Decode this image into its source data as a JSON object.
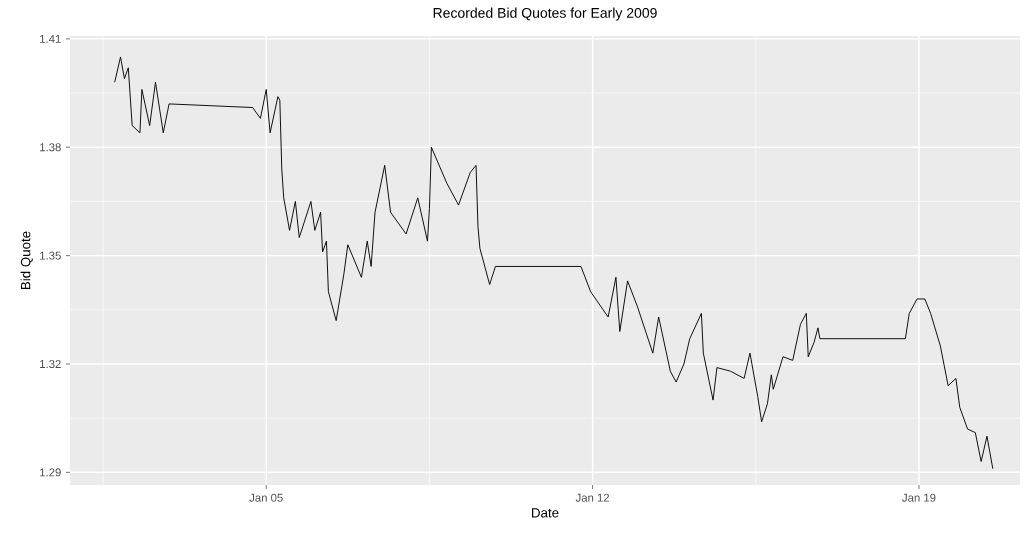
{
  "chart_data": {
    "type": "line",
    "title": "Recorded Bid Quotes for Early 2009",
    "xlabel": "Date",
    "ylabel": "Bid Quote",
    "color": "#000000",
    "grid": true,
    "x": [
      "2009-01-01T18:00",
      "2009-01-01T21:00",
      "2009-01-01T23:00",
      "2009-01-02T01:00",
      "2009-01-02T03:00",
      "2009-01-02T07:00",
      "2009-01-02T08:00",
      "2009-01-02T12:00",
      "2009-01-02T15:00",
      "2009-01-02T19:00",
      "2009-01-02T22:00",
      "2009-01-04T17:00",
      "2009-01-04T21:00",
      "2009-01-05T00:00",
      "2009-01-05T02:00",
      "2009-01-05T06:00",
      "2009-01-05T07:00",
      "2009-01-05T08:00",
      "2009-01-05T09:00",
      "2009-01-05T12:00",
      "2009-01-05T15:00",
      "2009-01-05T17:00",
      "2009-01-05T23:00",
      "2009-01-06T01:00",
      "2009-01-06T04:00",
      "2009-01-06T05:00",
      "2009-01-06T07:00",
      "2009-01-06T08:00",
      "2009-01-06T12:00",
      "2009-01-06T16:00",
      "2009-01-06T18:00",
      "2009-01-07T01:00",
      "2009-01-07T04:00",
      "2009-01-07T06:00",
      "2009-01-07T08:00",
      "2009-01-07T13:00",
      "2009-01-07T16:00",
      "2009-01-08T00:00",
      "2009-01-08T06:00",
      "2009-01-08T11:00",
      "2009-01-08T12:00",
      "2009-01-08T13:00",
      "2009-01-08T21:00",
      "2009-01-09T03:00",
      "2009-01-09T09:00",
      "2009-01-09T12:00",
      "2009-01-09T13:00",
      "2009-01-09T14:00",
      "2009-01-09T19:00",
      "2009-01-09T22:00",
      "2009-01-11T18:00",
      "2009-01-11T23:00",
      "2009-01-12T08:00",
      "2009-01-12T12:00",
      "2009-01-12T14:00",
      "2009-01-12T18:00",
      "2009-01-12T23:00",
      "2009-01-13T07:00",
      "2009-01-13T10:00",
      "2009-01-13T16:00",
      "2009-01-13T19:00",
      "2009-01-13T23:00",
      "2009-01-14T02:00",
      "2009-01-14T08:00",
      "2009-01-14T09:00",
      "2009-01-14T14:00",
      "2009-01-14T16:00",
      "2009-01-14T23:00",
      "2009-01-15T06:00",
      "2009-01-15T09:00",
      "2009-01-15T13:00",
      "2009-01-15T15:00",
      "2009-01-15T18:00",
      "2009-01-15T20:00",
      "2009-01-15T21:00",
      "2009-01-16T02:00",
      "2009-01-16T07:00",
      "2009-01-16T11:00",
      "2009-01-16T14:00",
      "2009-01-16T15:00",
      "2009-01-16T18:00",
      "2009-01-16T20:00",
      "2009-01-16T21:00",
      "2009-01-18T17:00",
      "2009-01-18T19:00",
      "2009-01-18T23:00",
      "2009-01-19T03:00",
      "2009-01-19T06:00",
      "2009-01-19T11:00",
      "2009-01-19T15:00",
      "2009-01-19T19:00",
      "2009-01-19T21:00",
      "2009-01-20T01:00",
      "2009-01-20T05:00",
      "2009-01-20T08:00",
      "2009-01-20T11:00",
      "2009-01-20T14:00"
    ],
    "values": [
      1.398,
      1.405,
      1.399,
      1.402,
      1.386,
      1.384,
      1.396,
      1.386,
      1.398,
      1.384,
      1.392,
      1.391,
      1.388,
      1.396,
      1.384,
      1.394,
      1.393,
      1.374,
      1.366,
      1.357,
      1.365,
      1.355,
      1.365,
      1.357,
      1.362,
      1.351,
      1.354,
      1.34,
      1.332,
      1.345,
      1.353,
      1.344,
      1.354,
      1.347,
      1.362,
      1.375,
      1.362,
      1.356,
      1.366,
      1.354,
      1.363,
      1.38,
      1.37,
      1.364,
      1.373,
      1.375,
      1.358,
      1.352,
      1.342,
      1.347,
      1.347,
      1.34,
      1.333,
      1.344,
      1.329,
      1.343,
      1.336,
      1.323,
      1.333,
      1.318,
      1.315,
      1.32,
      1.327,
      1.334,
      1.323,
      1.31,
      1.319,
      1.318,
      1.316,
      1.323,
      1.311,
      1.304,
      1.309,
      1.317,
      1.313,
      1.322,
      1.321,
      1.331,
      1.334,
      1.322,
      1.326,
      1.33,
      1.327,
      1.327,
      1.334,
      1.338,
      1.338,
      1.334,
      1.325,
      1.314,
      1.316,
      1.308,
      1.302,
      1.301,
      1.293,
      1.3,
      1.291
    ],
    "xlim": [
      "2008-12-31T19:00",
      "2009-01-21T04:00"
    ],
    "ylim": [
      1.2865,
      1.4108
    ],
    "xticks": [
      {
        "value": "2009-01-01T12:00",
        "label": null
      },
      {
        "value": "2009-01-05",
        "label": "Jan 05"
      },
      {
        "value": "2009-01-08T12:00",
        "label": null
      },
      {
        "value": "2009-01-12",
        "label": "Jan 12"
      },
      {
        "value": "2009-01-15T12:00",
        "label": null
      },
      {
        "value": "2009-01-19",
        "label": "Jan 19"
      }
    ],
    "yticks": [
      1.29,
      {
        "value": 1.305,
        "label": null
      },
      1.32,
      {
        "value": 1.335,
        "label": null
      },
      1.35,
      {
        "value": 1.365,
        "label": null
      },
      1.38,
      {
        "value": 1.395,
        "label": null
      },
      1.41
    ]
  }
}
